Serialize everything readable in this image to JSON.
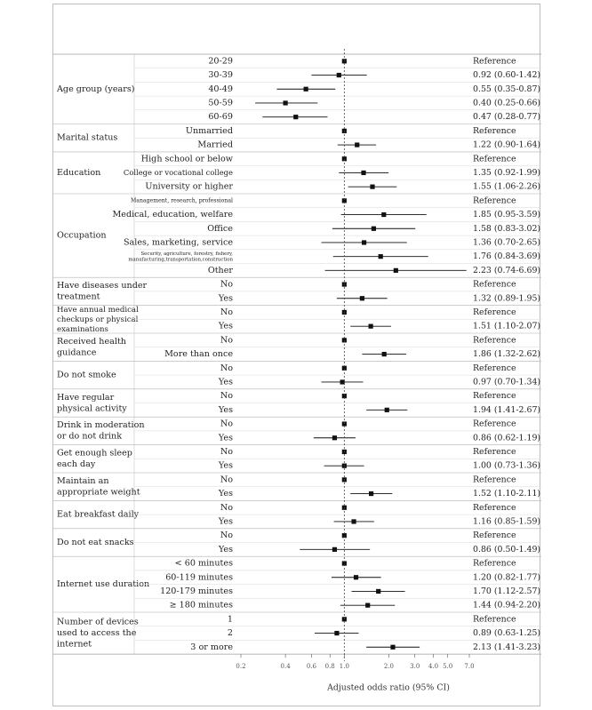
{
  "chart_data": {
    "type": "forest",
    "xlabel": "Adjusted odds ratio (95% CI)",
    "x_scale": "log",
    "xlim": [
      0.2,
      7.0
    ],
    "ticks": [
      0.2,
      0.4,
      0.6,
      0.8,
      1.0,
      2.0,
      3.0,
      4.0,
      5.0,
      7.0
    ],
    "tick_labels": [
      "0.2",
      "0.4",
      "0.6",
      "0.8",
      "1.0",
      "2.0",
      "3.0",
      "4.0",
      "5.0",
      "7.0"
    ],
    "reference_line": 1.0,
    "groups": [
      {
        "label": [
          "Age group (years)"
        ],
        "rows": [
          {
            "label": "20-29",
            "or": 1.0,
            "lo": null,
            "hi": null,
            "text": "Reference"
          },
          {
            "label": "30-39",
            "or": 0.92,
            "lo": 0.6,
            "hi": 1.42,
            "text": "0.92 (0.60-1.42)"
          },
          {
            "label": "40-49",
            "or": 0.55,
            "lo": 0.35,
            "hi": 0.87,
            "text": "0.55 (0.35-0.87)"
          },
          {
            "label": "50-59",
            "or": 0.4,
            "lo": 0.25,
            "hi": 0.66,
            "text": "0.40 (0.25-0.66)"
          },
          {
            "label": "60-69",
            "or": 0.47,
            "lo": 0.28,
            "hi": 0.77,
            "text": "0.47 (0.28-0.77)"
          }
        ]
      },
      {
        "label": [
          "Marital status"
        ],
        "rows": [
          {
            "label": "Unmarried",
            "or": 1.0,
            "lo": null,
            "hi": null,
            "text": "Reference"
          },
          {
            "label": "Married",
            "or": 1.22,
            "lo": 0.9,
            "hi": 1.64,
            "text": "1.22 (0.90-1.64)"
          }
        ]
      },
      {
        "label": [
          "Education"
        ],
        "rows": [
          {
            "label": "High school or below",
            "or": 1.0,
            "lo": null,
            "hi": null,
            "text": "Reference"
          },
          {
            "label": "College or vocational college",
            "or": 1.35,
            "lo": 0.92,
            "hi": 1.99,
            "text": "1.35 (0.92-1.99)",
            "small": true
          },
          {
            "label": "University or higher",
            "or": 1.55,
            "lo": 1.06,
            "hi": 2.26,
            "text": "1.55 (1.06-2.26)"
          }
        ]
      },
      {
        "label": [
          "Occupation"
        ],
        "rows": [
          {
            "label": "Management, research, professional",
            "or": 1.0,
            "lo": null,
            "hi": null,
            "text": "Reference",
            "tiny": true
          },
          {
            "label": "Medical, education, welfare",
            "or": 1.85,
            "lo": 0.95,
            "hi": 3.59,
            "text": "1.85 (0.95-3.59)"
          },
          {
            "label": "Office",
            "or": 1.58,
            "lo": 0.83,
            "hi": 3.02,
            "text": "1.58 (0.83-3.02)"
          },
          {
            "label": "Sales, marketing, service",
            "or": 1.36,
            "lo": 0.7,
            "hi": 2.65,
            "text": "1.36 (0.70-2.65)"
          },
          {
            "label": "Security, agriculture, forestry, fishery, manufacturing,transportation,construction",
            "label_lines": [
              "Security, agriculture, forestry, fishery,",
              "manufacturing,transportation,construction"
            ],
            "or": 1.76,
            "lo": 0.84,
            "hi": 3.69,
            "text": "1.76 (0.84-3.69)",
            "tiny": true
          },
          {
            "label": "Other",
            "or": 2.23,
            "lo": 0.74,
            "hi": 6.69,
            "text": "2.23 (0.74-6.69)"
          }
        ]
      },
      {
        "label": [
          "Have diseases under",
          "treatment"
        ],
        "rows": [
          {
            "label": "No",
            "or": 1.0,
            "lo": null,
            "hi": null,
            "text": "Reference"
          },
          {
            "label": "Yes",
            "or": 1.32,
            "lo": 0.89,
            "hi": 1.95,
            "text": "1.32 (0.89-1.95)"
          }
        ]
      },
      {
        "label": [
          "Have annual medical",
          "checkups or physical",
          "examinations"
        ],
        "small_label": true,
        "rows": [
          {
            "label": "No",
            "or": 1.0,
            "lo": null,
            "hi": null,
            "text": "Reference"
          },
          {
            "label": "Yes",
            "or": 1.51,
            "lo": 1.1,
            "hi": 2.07,
            "text": "1.51 (1.10-2.07)"
          }
        ]
      },
      {
        "label": [
          "Received health",
          "guidance"
        ],
        "rows": [
          {
            "label": "No",
            "or": 1.0,
            "lo": null,
            "hi": null,
            "text": "Reference"
          },
          {
            "label": "More than once",
            "or": 1.86,
            "lo": 1.32,
            "hi": 2.62,
            "text": "1.86 (1.32-2.62)"
          }
        ]
      },
      {
        "label": [
          "Do not smoke"
        ],
        "rows": [
          {
            "label": "No",
            "or": 1.0,
            "lo": null,
            "hi": null,
            "text": "Reference"
          },
          {
            "label": "Yes",
            "or": 0.97,
            "lo": 0.7,
            "hi": 1.34,
            "text": "0.97 (0.70-1.34)"
          }
        ]
      },
      {
        "label": [
          "Have regular",
          "physical activity"
        ],
        "rows": [
          {
            "label": "No",
            "or": 1.0,
            "lo": null,
            "hi": null,
            "text": "Reference"
          },
          {
            "label": "Yes",
            "or": 1.94,
            "lo": 1.41,
            "hi": 2.67,
            "text": "1.94 (1.41-2.67)"
          }
        ]
      },
      {
        "label": [
          "Drink in moderation",
          "or do not drink"
        ],
        "rows": [
          {
            "label": "No",
            "or": 1.0,
            "lo": null,
            "hi": null,
            "text": "Reference"
          },
          {
            "label": "Yes",
            "or": 0.86,
            "lo": 0.62,
            "hi": 1.19,
            "text": "0.86 (0.62-1.19)"
          }
        ]
      },
      {
        "label": [
          "Get enough sleep",
          "each day"
        ],
        "rows": [
          {
            "label": "No",
            "or": 1.0,
            "lo": null,
            "hi": null,
            "text": "Reference"
          },
          {
            "label": "Yes",
            "or": 1.0,
            "lo": 0.73,
            "hi": 1.36,
            "text": "1.00 (0.73-1.36)"
          }
        ]
      },
      {
        "label": [
          "Maintain an",
          "appropriate weight"
        ],
        "rows": [
          {
            "label": "No",
            "or": 1.0,
            "lo": null,
            "hi": null,
            "text": "Reference"
          },
          {
            "label": "Yes",
            "or": 1.52,
            "lo": 1.1,
            "hi": 2.11,
            "text": "1.52 (1.10-2.11)"
          }
        ]
      },
      {
        "label": [
          "Eat breakfast daily"
        ],
        "rows": [
          {
            "label": "No",
            "or": 1.0,
            "lo": null,
            "hi": null,
            "text": "Reference"
          },
          {
            "label": "Yes",
            "or": 1.16,
            "lo": 0.85,
            "hi": 1.59,
            "text": "1.16 (0.85-1.59)"
          }
        ]
      },
      {
        "label": [
          "Do not eat snacks"
        ],
        "rows": [
          {
            "label": "No",
            "or": 1.0,
            "lo": null,
            "hi": null,
            "text": "Reference"
          },
          {
            "label": "Yes",
            "or": 0.86,
            "lo": 0.5,
            "hi": 1.49,
            "text": "0.86 (0.50-1.49)"
          }
        ]
      },
      {
        "label": [
          "Internet use duration"
        ],
        "rows": [
          {
            "label": "< 60 minutes",
            "or": 1.0,
            "lo": null,
            "hi": null,
            "text": "Reference"
          },
          {
            "label": "60-119 minutes",
            "or": 1.2,
            "lo": 0.82,
            "hi": 1.77,
            "text": "1.20 (0.82-1.77)"
          },
          {
            "label": "120-179 minutes",
            "or": 1.7,
            "lo": 1.12,
            "hi": 2.57,
            "text": "1.70 (1.12-2.57)"
          },
          {
            "label": "≥ 180 minutes",
            "or": 1.44,
            "lo": 0.94,
            "hi": 2.2,
            "text": "1.44 (0.94-2.20)"
          }
        ]
      },
      {
        "label": [
          "Number of devices",
          "used to access the",
          "internet"
        ],
        "rows": [
          {
            "label": "1",
            "or": 1.0,
            "lo": null,
            "hi": null,
            "text": "Reference"
          },
          {
            "label": "2",
            "or": 0.89,
            "lo": 0.63,
            "hi": 1.25,
            "text": "0.89 (0.63-1.25)"
          },
          {
            "label": "3 or more",
            "or": 2.13,
            "lo": 1.41,
            "hi": 3.23,
            "text": "2.13 (1.41-3.23)"
          }
        ]
      }
    ]
  }
}
